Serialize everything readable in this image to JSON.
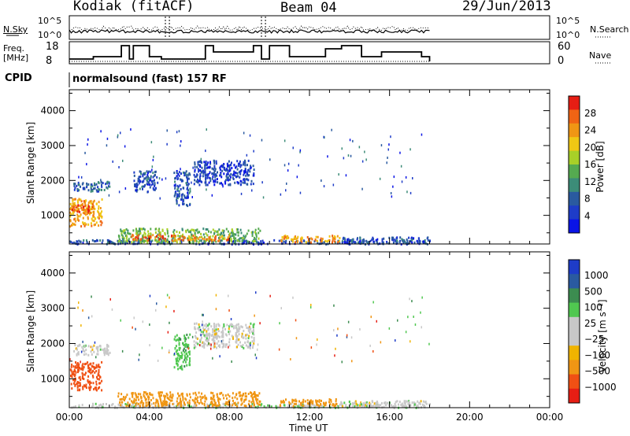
{
  "header": {
    "title": "Kodiak (fitACF)",
    "beam": "Beam 04",
    "date": "29/Jun/2013"
  },
  "noise_panel": {
    "left_label": "N.Sky",
    "right_label": "N.Search",
    "left_ticks": [
      "10^5",
      "10^0"
    ],
    "right_ticks": [
      "10^5",
      "10^0"
    ]
  },
  "freq_panel": {
    "left_label_1": "Freq.",
    "left_label_2": "[MHz]",
    "left_ticks": [
      "18",
      "8"
    ],
    "right_label": "Nave",
    "right_ticks": [
      "60",
      "0"
    ]
  },
  "cpid": {
    "label": "CPID",
    "value": "normalsound (fast) 157 RF"
  },
  "colors": {
    "power_scale": [
      "#0a14e6",
      "#1e3cc8",
      "#2a5aa0",
      "#3c8c78",
      "#55aa50",
      "#a8d028",
      "#f0c814",
      "#f09614",
      "#f06414",
      "#e61e14"
    ],
    "velocity_scale": [
      "#e61e14",
      "#f05014",
      "#f09614",
      "#f0b400",
      "#c8c8c8",
      "#c8c8c8",
      "#50c850",
      "#3c8c50",
      "#2a5aa0",
      "#1e3cc8"
    ]
  },
  "chart_data": [
    {
      "type": "heatmap",
      "title": "Power",
      "xlabel": "",
      "ylabel": "Slant Range [km]",
      "x_ticks": [
        "00:00",
        "04:00",
        "08:00",
        "12:00",
        "16:00",
        "20:00",
        "00:00"
      ],
      "y_ticks": [
        1000,
        2000,
        3000,
        4000
      ],
      "ylim": [
        180,
        4600
      ],
      "xlim_hours": [
        0,
        24
      ],
      "colorbar": {
        "label": "Power [dB]",
        "ticks": [
          4,
          8,
          12,
          16,
          20,
          24,
          28
        ],
        "range": [
          0,
          30
        ]
      },
      "regions": [
        {
          "t0": 0.0,
          "t1": 1.6,
          "r0": 700,
          "r1": 1500,
          "value": 22
        },
        {
          "t0": 0.0,
          "t1": 1.2,
          "r0": 1100,
          "r1": 1350,
          "value": 26
        },
        {
          "t0": 0.2,
          "t1": 2.0,
          "r0": 1700,
          "r1": 2000,
          "value": 8
        },
        {
          "t0": 0.0,
          "t1": 18.0,
          "r0": 200,
          "r1": 320,
          "value": 6
        },
        {
          "t0": 2.4,
          "t1": 9.5,
          "r0": 250,
          "r1": 650,
          "value": 14
        },
        {
          "t0": 3.0,
          "t1": 4.8,
          "r0": 300,
          "r1": 480,
          "value": 26
        },
        {
          "t0": 5.0,
          "t1": 8.0,
          "r0": 300,
          "r1": 450,
          "value": 24
        },
        {
          "t0": 5.2,
          "t1": 6.0,
          "r0": 1300,
          "r1": 2300,
          "value": 6
        },
        {
          "t0": 6.2,
          "t1": 9.2,
          "r0": 1900,
          "r1": 2600,
          "value": 5
        },
        {
          "t0": 3.2,
          "t1": 4.4,
          "r0": 1700,
          "r1": 2300,
          "value": 6
        },
        {
          "t0": 10.5,
          "t1": 13.5,
          "r0": 250,
          "r1": 450,
          "value": 22
        },
        {
          "t0": 13.5,
          "t1": 18.0,
          "r0": 230,
          "r1": 400,
          "value": 6
        }
      ]
    },
    {
      "type": "heatmap",
      "title": "Velocity",
      "xlabel": "Time UT",
      "ylabel": "Slant Range [km]",
      "x_ticks": [
        "00:00",
        "04:00",
        "08:00",
        "12:00",
        "16:00",
        "20:00",
        "00:00"
      ],
      "y_ticks": [
        1000,
        2000,
        3000,
        4000
      ],
      "ylim": [
        180,
        4600
      ],
      "xlim_hours": [
        0,
        24
      ],
      "colorbar": {
        "label": "Velocity [m s⁻¹]",
        "ticks": [
          "1000",
          "500",
          "100",
          "25",
          "−25",
          "−100",
          "−500",
          "−1000"
        ]
      },
      "regions": [
        {
          "t0": 0.0,
          "t1": 1.6,
          "r0": 700,
          "r1": 1500,
          "value": -800
        },
        {
          "t0": 0.2,
          "t1": 2.0,
          "r0": 1700,
          "r1": 2000,
          "value": 0
        },
        {
          "t0": 0.0,
          "t1": 18.0,
          "r0": 200,
          "r1": 320,
          "value": 10
        },
        {
          "t0": 2.4,
          "t1": 9.5,
          "r0": 250,
          "r1": 650,
          "value": -150
        },
        {
          "t0": 5.2,
          "t1": 6.0,
          "r0": 1300,
          "r1": 2300,
          "value": 80
        },
        {
          "t0": 6.2,
          "t1": 9.2,
          "r0": 1900,
          "r1": 2600,
          "value": 0
        },
        {
          "t0": 10.5,
          "t1": 13.5,
          "r0": 250,
          "r1": 450,
          "value": -150
        },
        {
          "t0": 13.5,
          "t1": 18.0,
          "r0": 230,
          "r1": 400,
          "value": 0
        }
      ]
    }
  ]
}
